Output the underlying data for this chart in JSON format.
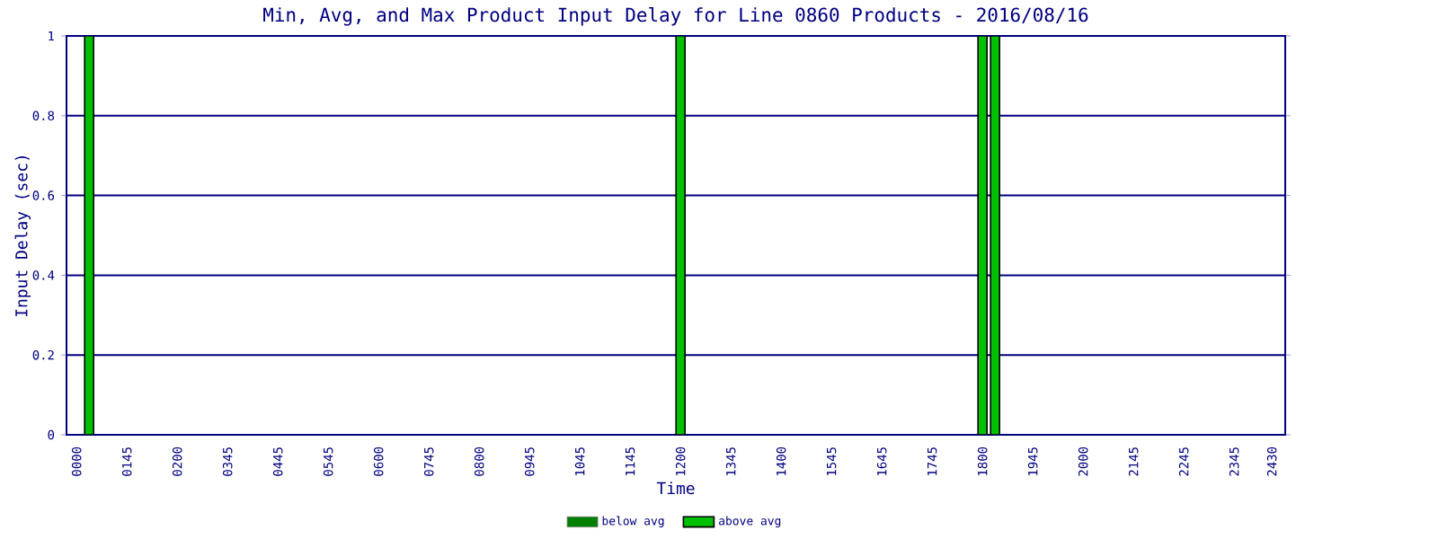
{
  "chart_data": {
    "type": "bar",
    "title": "Min, Avg, and Max Product Input Delay for Line 0860 Products - 2016/08/16",
    "xlabel": "Time",
    "ylabel": "Input Delay (sec)",
    "categories": [
      "0000",
      null,
      null,
      null,
      "0145",
      null,
      null,
      null,
      "0200",
      null,
      null,
      null,
      "0345",
      null,
      null,
      null,
      "0445",
      null,
      null,
      null,
      "0545",
      null,
      null,
      null,
      "0600",
      null,
      null,
      null,
      "0745",
      null,
      null,
      null,
      "0800",
      null,
      null,
      null,
      "0945",
      null,
      null,
      null,
      "1045",
      null,
      null,
      null,
      "1145",
      null,
      null,
      null,
      "1200",
      null,
      null,
      null,
      "1345",
      null,
      null,
      null,
      "1400",
      null,
      null,
      null,
      "1545",
      null,
      null,
      null,
      "1645",
      null,
      null,
      null,
      "1745",
      null,
      null,
      null,
      "1800",
      null,
      null,
      null,
      "1945",
      null,
      null,
      null,
      "2000",
      null,
      null,
      null,
      "2145",
      null,
      null,
      null,
      "2245",
      null,
      null,
      null,
      "2345",
      null,
      null,
      "2430"
    ],
    "series": [
      {
        "name": "below avg",
        "color": "#008000",
        "values": [
          null,
          null,
          null,
          null,
          null,
          null,
          null,
          null,
          null,
          null,
          null,
          null,
          null,
          null,
          null,
          null,
          null,
          null,
          null,
          null,
          null,
          null,
          null,
          null,
          null,
          null,
          null,
          null,
          null,
          null,
          null,
          null,
          null,
          null,
          null,
          null,
          null,
          null,
          null,
          null,
          null,
          null,
          null,
          null,
          null,
          null,
          null,
          null,
          null,
          null,
          null,
          null,
          null,
          null,
          null,
          null,
          null,
          null,
          null,
          null,
          null,
          null,
          null,
          null,
          null,
          null,
          null,
          null,
          null,
          null,
          null,
          null,
          null,
          null,
          null,
          null,
          null,
          null,
          null,
          null,
          null,
          null,
          null,
          null,
          null,
          null,
          null,
          null,
          null,
          null,
          null,
          null,
          null,
          null,
          null,
          null
        ]
      },
      {
        "name": "above avg",
        "color": "#00c000",
        "values": [
          null,
          1,
          null,
          null,
          null,
          null,
          null,
          null,
          null,
          null,
          null,
          null,
          null,
          null,
          null,
          null,
          null,
          null,
          null,
          null,
          null,
          null,
          null,
          null,
          null,
          null,
          null,
          null,
          null,
          null,
          null,
          null,
          null,
          null,
          null,
          null,
          null,
          null,
          null,
          null,
          null,
          null,
          null,
          null,
          null,
          null,
          null,
          null,
          1,
          null,
          null,
          null,
          null,
          null,
          null,
          null,
          null,
          null,
          null,
          null,
          null,
          null,
          null,
          null,
          null,
          null,
          null,
          null,
          null,
          null,
          null,
          null,
          1,
          1,
          null,
          null,
          null,
          null,
          null,
          null,
          null,
          null,
          null,
          null,
          null,
          null,
          null,
          null,
          null,
          null,
          null,
          null,
          null,
          null,
          null,
          null
        ]
      }
    ],
    "ylim": [
      0,
      1
    ],
    "yticks": [
      0,
      0.2,
      0.4,
      0.6,
      0.8,
      1
    ],
    "grid": "y",
    "legend": "bottom"
  }
}
